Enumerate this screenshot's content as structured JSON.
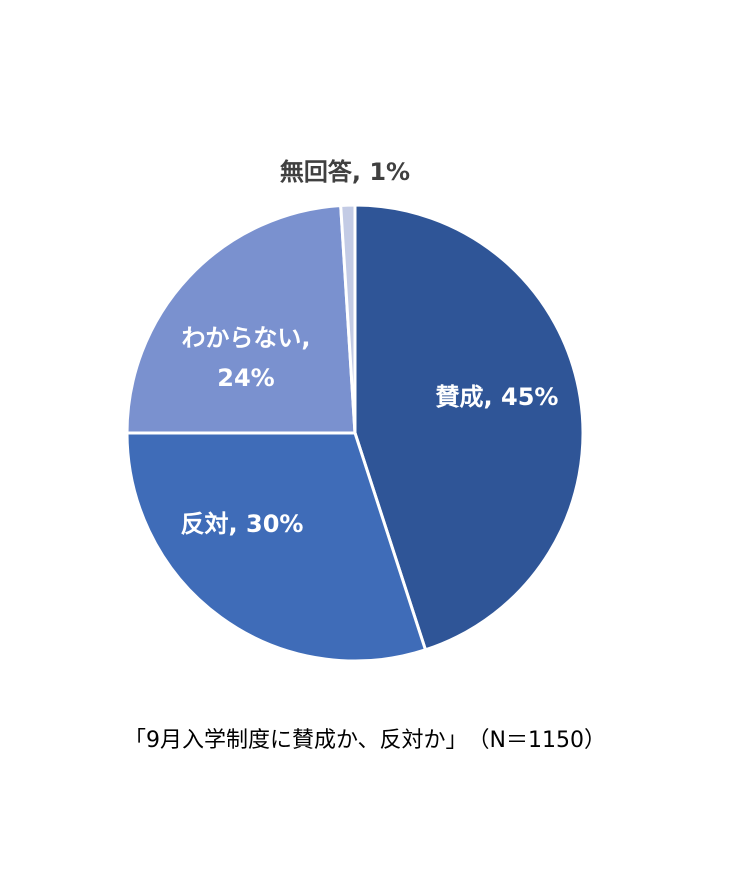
{
  "chart_data": {
    "type": "pie",
    "title": "「9月入学制度に賛成か、反対か」　（N＝1150）",
    "values": [
      45,
      30,
      24,
      1
    ],
    "value_labels": [
      "賛成, 45%",
      "反対, 30%",
      "わからない, 24%",
      "無回答, 1%"
    ],
    "colors": [
      "#2f5597",
      "#3f6cb8",
      "#7a91cf",
      "#c3cbe5"
    ],
    "start_angle": 0,
    "direction": "clockwise"
  }
}
